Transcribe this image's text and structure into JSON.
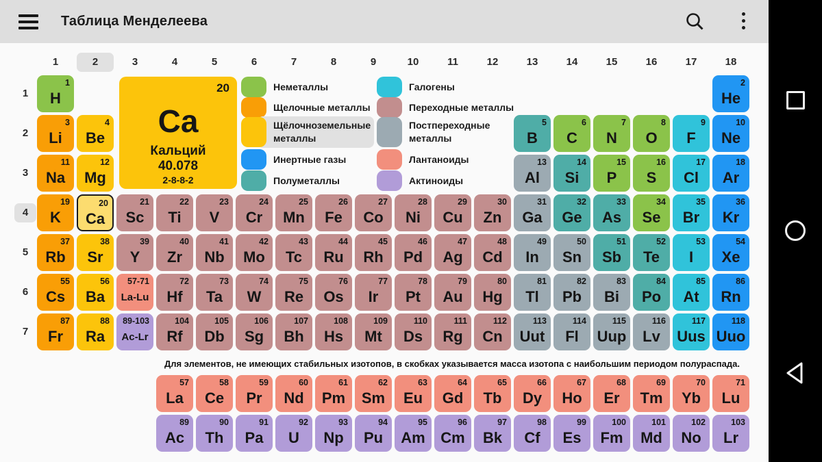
{
  "app_bar": {
    "title": "Таблица Менделеева"
  },
  "colors": {
    "nonmetal": "#8bc34a",
    "alkali": "#f99e06",
    "alkaline": "#fcc40b",
    "noble": "#2196f3",
    "metalloid": "#4fada7",
    "halogen": "#30c3da",
    "transition": "#c28e8e",
    "post": "#9caab2",
    "lanthanide": "#f28f7d",
    "actinide": "#b19cd8",
    "selected_fill": "#fcdc6f",
    "selected_border": "#1c1c1c",
    "label_highlight": "#e1e1e1"
  },
  "group_numbers": [
    "1",
    "2",
    "3",
    "4",
    "5",
    "6",
    "7",
    "8",
    "9",
    "10",
    "11",
    "12",
    "13",
    "14",
    "15",
    "16",
    "17",
    "18"
  ],
  "highlighted_group": "2",
  "period_numbers": [
    "1",
    "2",
    "3",
    "4",
    "5",
    "6",
    "7"
  ],
  "highlighted_period": "4",
  "detail_card": {
    "number": "20",
    "symbol": "Ca",
    "name": "Кальций",
    "mass": "40.078",
    "shells": "2-8-8-2",
    "cat": "alkaline"
  },
  "legend": {
    "left": [
      {
        "label": "Неметаллы",
        "cat": "nonmetal"
      },
      {
        "label": "Щелочные металлы",
        "cat": "alkali"
      },
      {
        "label": "Щёлочноземельные\nметаллы",
        "cat": "alkaline",
        "highlighted": true
      },
      {
        "label": "Инертные газы",
        "cat": "noble"
      },
      {
        "label": "Полуметаллы",
        "cat": "metalloid"
      }
    ],
    "right": [
      {
        "label": "Галогены",
        "cat": "halogen"
      },
      {
        "label": "Переходные металлы",
        "cat": "transition"
      },
      {
        "label": "Постпереходные\nметаллы",
        "cat": "post"
      },
      {
        "label": "Лантаноиды",
        "cat": "lanthanide"
      },
      {
        "label": "Актиноиды",
        "cat": "actinide"
      }
    ]
  },
  "note": "Для элементов, не имеющих стабильных изотопов, в скобках указывается масса изотопа с наибольшим периодом полураспада.",
  "table": {
    "cells": [
      {
        "n": "1",
        "sym": "H",
        "col": 1,
        "row": 1,
        "cat": "nonmetal"
      },
      {
        "n": "2",
        "sym": "He",
        "col": 18,
        "row": 1,
        "cat": "noble"
      },
      {
        "n": "3",
        "sym": "Li",
        "col": 1,
        "row": 2,
        "cat": "alkali"
      },
      {
        "n": "4",
        "sym": "Be",
        "col": 2,
        "row": 2,
        "cat": "alkaline"
      },
      {
        "n": "5",
        "sym": "B",
        "col": 13,
        "row": 2,
        "cat": "metalloid"
      },
      {
        "n": "6",
        "sym": "C",
        "col": 14,
        "row": 2,
        "cat": "nonmetal"
      },
      {
        "n": "7",
        "sym": "N",
        "col": 15,
        "row": 2,
        "cat": "nonmetal"
      },
      {
        "n": "8",
        "sym": "O",
        "col": 16,
        "row": 2,
        "cat": "nonmetal"
      },
      {
        "n": "9",
        "sym": "F",
        "col": 17,
        "row": 2,
        "cat": "halogen"
      },
      {
        "n": "10",
        "sym": "Ne",
        "col": 18,
        "row": 2,
        "cat": "noble"
      },
      {
        "n": "11",
        "sym": "Na",
        "col": 1,
        "row": 3,
        "cat": "alkali"
      },
      {
        "n": "12",
        "sym": "Mg",
        "col": 2,
        "row": 3,
        "cat": "alkaline"
      },
      {
        "n": "13",
        "sym": "Al",
        "col": 13,
        "row": 3,
        "cat": "post"
      },
      {
        "n": "14",
        "sym": "Si",
        "col": 14,
        "row": 3,
        "cat": "metalloid"
      },
      {
        "n": "15",
        "sym": "P",
        "col": 15,
        "row": 3,
        "cat": "nonmetal"
      },
      {
        "n": "16",
        "sym": "S",
        "col": 16,
        "row": 3,
        "cat": "nonmetal"
      },
      {
        "n": "17",
        "sym": "Cl",
        "col": 17,
        "row": 3,
        "cat": "halogen"
      },
      {
        "n": "18",
        "sym": "Ar",
        "col": 18,
        "row": 3,
        "cat": "noble"
      },
      {
        "n": "19",
        "sym": "K",
        "col": 1,
        "row": 4,
        "cat": "alkali"
      },
      {
        "n": "20",
        "sym": "Ca",
        "col": 2,
        "row": 4,
        "cat": "alkaline",
        "selected": true
      },
      {
        "n": "21",
        "sym": "Sc",
        "col": 3,
        "row": 4,
        "cat": "transition"
      },
      {
        "n": "22",
        "sym": "Ti",
        "col": 4,
        "row": 4,
        "cat": "transition"
      },
      {
        "n": "23",
        "sym": "V",
        "col": 5,
        "row": 4,
        "cat": "transition"
      },
      {
        "n": "24",
        "sym": "Cr",
        "col": 6,
        "row": 4,
        "cat": "transition"
      },
      {
        "n": "25",
        "sym": "Mn",
        "col": 7,
        "row": 4,
        "cat": "transition"
      },
      {
        "n": "26",
        "sym": "Fe",
        "col": 8,
        "row": 4,
        "cat": "transition"
      },
      {
        "n": "27",
        "sym": "Co",
        "col": 9,
        "row": 4,
        "cat": "transition"
      },
      {
        "n": "28",
        "sym": "Ni",
        "col": 10,
        "row": 4,
        "cat": "transition"
      },
      {
        "n": "29",
        "sym": "Cu",
        "col": 11,
        "row": 4,
        "cat": "transition"
      },
      {
        "n": "30",
        "sym": "Zn",
        "col": 12,
        "row": 4,
        "cat": "transition"
      },
      {
        "n": "31",
        "sym": "Ga",
        "col": 13,
        "row": 4,
        "cat": "post"
      },
      {
        "n": "32",
        "sym": "Ge",
        "col": 14,
        "row": 4,
        "cat": "metalloid"
      },
      {
        "n": "33",
        "sym": "As",
        "col": 15,
        "row": 4,
        "cat": "metalloid"
      },
      {
        "n": "34",
        "sym": "Se",
        "col": 16,
        "row": 4,
        "cat": "nonmetal"
      },
      {
        "n": "35",
        "sym": "Br",
        "col": 17,
        "row": 4,
        "cat": "halogen"
      },
      {
        "n": "36",
        "sym": "Kr",
        "col": 18,
        "row": 4,
        "cat": "noble"
      },
      {
        "n": "37",
        "sym": "Rb",
        "col": 1,
        "row": 5,
        "cat": "alkali"
      },
      {
        "n": "38",
        "sym": "Sr",
        "col": 2,
        "row": 5,
        "cat": "alkaline"
      },
      {
        "n": "39",
        "sym": "Y",
        "col": 3,
        "row": 5,
        "cat": "transition"
      },
      {
        "n": "40",
        "sym": "Zr",
        "col": 4,
        "row": 5,
        "cat": "transition"
      },
      {
        "n": "41",
        "sym": "Nb",
        "col": 5,
        "row": 5,
        "cat": "transition"
      },
      {
        "n": "42",
        "sym": "Mo",
        "col": 6,
        "row": 5,
        "cat": "transition"
      },
      {
        "n": "43",
        "sym": "Tc",
        "col": 7,
        "row": 5,
        "cat": "transition"
      },
      {
        "n": "44",
        "sym": "Ru",
        "col": 8,
        "row": 5,
        "cat": "transition"
      },
      {
        "n": "45",
        "sym": "Rh",
        "col": 9,
        "row": 5,
        "cat": "transition"
      },
      {
        "n": "46",
        "sym": "Pd",
        "col": 10,
        "row": 5,
        "cat": "transition"
      },
      {
        "n": "47",
        "sym": "Ag",
        "col": 11,
        "row": 5,
        "cat": "transition"
      },
      {
        "n": "48",
        "sym": "Cd",
        "col": 12,
        "row": 5,
        "cat": "transition"
      },
      {
        "n": "49",
        "sym": "In",
        "col": 13,
        "row": 5,
        "cat": "post"
      },
      {
        "n": "50",
        "sym": "Sn",
        "col": 14,
        "row": 5,
        "cat": "post"
      },
      {
        "n": "51",
        "sym": "Sb",
        "col": 15,
        "row": 5,
        "cat": "metalloid"
      },
      {
        "n": "52",
        "sym": "Te",
        "col": 16,
        "row": 5,
        "cat": "metalloid"
      },
      {
        "n": "53",
        "sym": "I",
        "col": 17,
        "row": 5,
        "cat": "halogen"
      },
      {
        "n": "54",
        "sym": "Xe",
        "col": 18,
        "row": 5,
        "cat": "noble"
      },
      {
        "n": "55",
        "sym": "Cs",
        "col": 1,
        "row": 6,
        "cat": "alkali"
      },
      {
        "n": "56",
        "sym": "Ba",
        "col": 2,
        "row": 6,
        "cat": "alkaline"
      },
      {
        "n": "57-71",
        "sym": "La-Lu",
        "col": 3,
        "row": 6,
        "cat": "lanthanide",
        "small": true
      },
      {
        "n": "72",
        "sym": "Hf",
        "col": 4,
        "row": 6,
        "cat": "transition"
      },
      {
        "n": "73",
        "sym": "Ta",
        "col": 5,
        "row": 6,
        "cat": "transition"
      },
      {
        "n": "74",
        "sym": "W",
        "col": 6,
        "row": 6,
        "cat": "transition"
      },
      {
        "n": "75",
        "sym": "Re",
        "col": 7,
        "row": 6,
        "cat": "transition"
      },
      {
        "n": "76",
        "sym": "Os",
        "col": 8,
        "row": 6,
        "cat": "transition"
      },
      {
        "n": "77",
        "sym": "Ir",
        "col": 9,
        "row": 6,
        "cat": "transition"
      },
      {
        "n": "78",
        "sym": "Pt",
        "col": 10,
        "row": 6,
        "cat": "transition"
      },
      {
        "n": "79",
        "sym": "Au",
        "col": 11,
        "row": 6,
        "cat": "transition"
      },
      {
        "n": "80",
        "sym": "Hg",
        "col": 12,
        "row": 6,
        "cat": "transition"
      },
      {
        "n": "81",
        "sym": "Tl",
        "col": 13,
        "row": 6,
        "cat": "post"
      },
      {
        "n": "82",
        "sym": "Pb",
        "col": 14,
        "row": 6,
        "cat": "post"
      },
      {
        "n": "83",
        "sym": "Bi",
        "col": 15,
        "row": 6,
        "cat": "post"
      },
      {
        "n": "84",
        "sym": "Po",
        "col": 16,
        "row": 6,
        "cat": "metalloid"
      },
      {
        "n": "85",
        "sym": "At",
        "col": 17,
        "row": 6,
        "cat": "halogen"
      },
      {
        "n": "86",
        "sym": "Rn",
        "col": 18,
        "row": 6,
        "cat": "noble"
      },
      {
        "n": "87",
        "sym": "Fr",
        "col": 1,
        "row": 7,
        "cat": "alkali"
      },
      {
        "n": "88",
        "sym": "Ra",
        "col": 2,
        "row": 7,
        "cat": "alkaline"
      },
      {
        "n": "89-103",
        "sym": "Ac-Lr",
        "col": 3,
        "row": 7,
        "cat": "actinide",
        "small": true
      },
      {
        "n": "104",
        "sym": "Rf",
        "col": 4,
        "row": 7,
        "cat": "transition"
      },
      {
        "n": "105",
        "sym": "Db",
        "col": 5,
        "row": 7,
        "cat": "transition"
      },
      {
        "n": "106",
        "sym": "Sg",
        "col": 6,
        "row": 7,
        "cat": "transition"
      },
      {
        "n": "107",
        "sym": "Bh",
        "col": 7,
        "row": 7,
        "cat": "transition"
      },
      {
        "n": "108",
        "sym": "Hs",
        "col": 8,
        "row": 7,
        "cat": "transition"
      },
      {
        "n": "109",
        "sym": "Mt",
        "col": 9,
        "row": 7,
        "cat": "transition"
      },
      {
        "n": "110",
        "sym": "Ds",
        "col": 10,
        "row": 7,
        "cat": "transition"
      },
      {
        "n": "111",
        "sym": "Rg",
        "col": 11,
        "row": 7,
        "cat": "transition"
      },
      {
        "n": "112",
        "sym": "Cn",
        "col": 12,
        "row": 7,
        "cat": "transition"
      },
      {
        "n": "113",
        "sym": "Uut",
        "col": 13,
        "row": 7,
        "cat": "post"
      },
      {
        "n": "114",
        "sym": "Fl",
        "col": 14,
        "row": 7,
        "cat": "post"
      },
      {
        "n": "115",
        "sym": "Uup",
        "col": 15,
        "row": 7,
        "cat": "post"
      },
      {
        "n": "116",
        "sym": "Lv",
        "col": 16,
        "row": 7,
        "cat": "post"
      },
      {
        "n": "117",
        "sym": "Uus",
        "col": 17,
        "row": 7,
        "cat": "halogen"
      },
      {
        "n": "118",
        "sym": "Uuo",
        "col": 18,
        "row": 7,
        "cat": "noble"
      }
    ]
  },
  "lanthanide_row": [
    {
      "n": "57",
      "sym": "La"
    },
    {
      "n": "58",
      "sym": "Ce"
    },
    {
      "n": "59",
      "sym": "Pr"
    },
    {
      "n": "60",
      "sym": "Nd"
    },
    {
      "n": "61",
      "sym": "Pm"
    },
    {
      "n": "62",
      "sym": "Sm"
    },
    {
      "n": "63",
      "sym": "Eu"
    },
    {
      "n": "64",
      "sym": "Gd"
    },
    {
      "n": "65",
      "sym": "Tb"
    },
    {
      "n": "66",
      "sym": "Dy"
    },
    {
      "n": "67",
      "sym": "Ho"
    },
    {
      "n": "68",
      "sym": "Er"
    },
    {
      "n": "69",
      "sym": "Tm"
    },
    {
      "n": "70",
      "sym": "Yb"
    },
    {
      "n": "71",
      "sym": "Lu"
    }
  ],
  "actinide_row": [
    {
      "n": "89",
      "sym": "Ac"
    },
    {
      "n": "90",
      "sym": "Th"
    },
    {
      "n": "91",
      "sym": "Pa"
    },
    {
      "n": "92",
      "sym": "U"
    },
    {
      "n": "93",
      "sym": "Np"
    },
    {
      "n": "94",
      "sym": "Pu"
    },
    {
      "n": "95",
      "sym": "Am"
    },
    {
      "n": "96",
      "sym": "Cm"
    },
    {
      "n": "97",
      "sym": "Bk"
    },
    {
      "n": "98",
      "sym": "Cf"
    },
    {
      "n": "99",
      "sym": "Es"
    },
    {
      "n": "100",
      "sym": "Fm"
    },
    {
      "n": "101",
      "sym": "Md"
    },
    {
      "n": "102",
      "sym": "No"
    },
    {
      "n": "103",
      "sym": "Lr"
    }
  ]
}
